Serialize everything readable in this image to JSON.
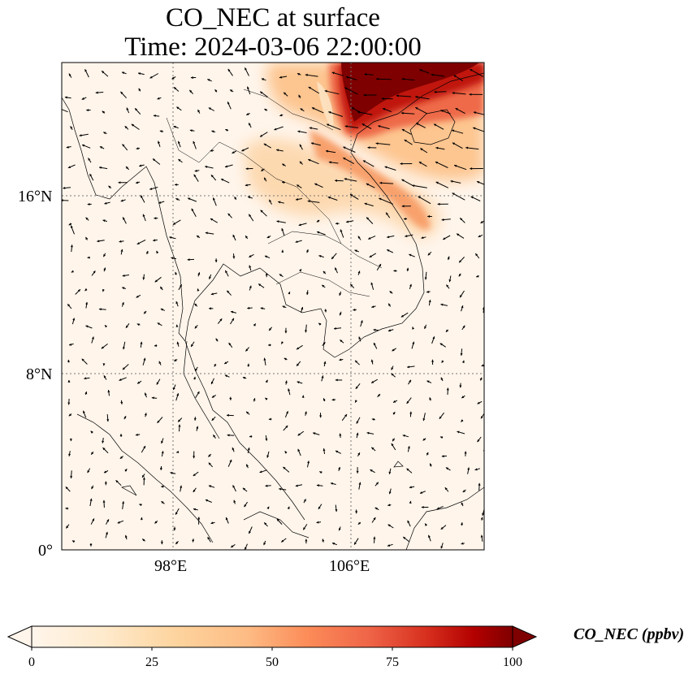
{
  "figure": {
    "title_line1": "CO_NEC at surface",
    "title_line2": "Time: 2024-03-06 22:00:00"
  },
  "map": {
    "extent_lon": [
      94.5,
      113.5
    ],
    "extent_lat": [
      0,
      21
    ],
    "gridlines_lon": [
      98,
      106
    ],
    "gridlines_lat": [
      0,
      8,
      16
    ],
    "lon_labels": [
      "98°E",
      "106°E"
    ],
    "lat_labels": [
      "16°N",
      "8°N",
      "0°"
    ],
    "background_color": "#fff5eb",
    "plume_color_scale": "OrRd-like"
  },
  "colorbar": {
    "label": "CO_NEC (ppbv)",
    "ticks": [
      "0",
      "25",
      "50",
      "75",
      "100"
    ],
    "range": [
      0,
      100
    ],
    "extend": "both",
    "colors": [
      "#fff5eb",
      "#fdd49e",
      "#fdbb84",
      "#fc8d59",
      "#ef6548",
      "#d7301f",
      "#b30000",
      "#7f0000"
    ]
  }
}
